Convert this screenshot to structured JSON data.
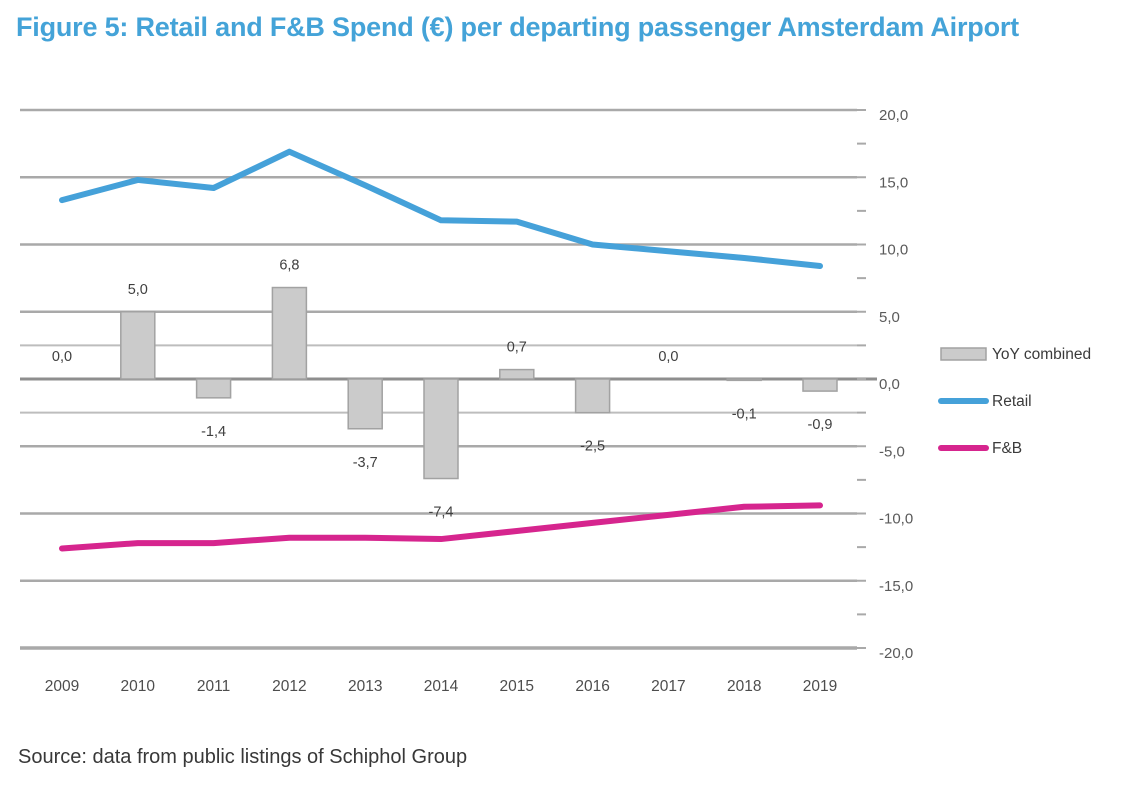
{
  "title": "Figure 5: Retail and F&B Spend (€) per departing passenger Amsterdam Airport",
  "source": "Source: data from public listings of Schiphol Group",
  "colors": {
    "title_text": "#44a3d8",
    "retail_line": "#45a1d9",
    "fnb_line": "#d6258e",
    "bar_fill": "#cbcbcb",
    "bar_border": "#a2a2a2",
    "gridline": "#a9a9a9",
    "minor_gridline": "#bdbdbd",
    "zero_line": "#8e8e8e",
    "axis_text": "#5a5a5a",
    "year_text": "#4d4d4d",
    "bar_label_text": "#3f3f3f",
    "legend_text": "#3b3b3b",
    "source_text": "#383838"
  },
  "chart_data": {
    "type": "bar",
    "subtype": "combo-bar-and-lines",
    "categories": [
      "2009",
      "2010",
      "2011",
      "2012",
      "2013",
      "2014",
      "2015",
      "2016",
      "2017",
      "2018",
      "2019"
    ],
    "series": [
      {
        "name": "YoY combined",
        "type": "bar",
        "values": [
          0.0,
          5.0,
          -1.4,
          6.8,
          -3.7,
          -7.4,
          0.7,
          -2.5,
          0.0,
          -0.1,
          -0.9
        ],
        "data_labels": [
          "0,0",
          "5,0",
          "-1,4",
          "6,8",
          "-3,7",
          "-7,4",
          "0,7",
          "-2,5",
          "0,0",
          "-0,1",
          "-0,9"
        ]
      },
      {
        "name": "Retail",
        "type": "line",
        "values": [
          13.3,
          14.8,
          14.2,
          16.9,
          14.4,
          11.8,
          11.7,
          10.0,
          9.5,
          9.0,
          8.4
        ]
      },
      {
        "name": "F&B",
        "type": "line",
        "values": [
          -12.6,
          -12.2,
          -12.2,
          -11.8,
          -11.8,
          -11.9,
          -11.3,
          -10.7,
          -10.1,
          -9.5,
          -9.4
        ],
        "note": "values read as plotted against the single visible right-hand axis; series likely sits on a hidden secondary axis"
      }
    ],
    "title": "Figure 5: Retail and F&B Spend (€) per departing passenger Amsterdam Airport",
    "xlabel": "",
    "ylabel": "",
    "ylim": [
      -20,
      20
    ],
    "y_axis": {
      "side": "right",
      "min": -20,
      "max": 20,
      "step": 5,
      "labels": [
        "20,0",
        "15,0",
        "10,0",
        "5,0",
        "0,0",
        "-5,0",
        "-10,0",
        "-15,0",
        "-20,0"
      ]
    },
    "gridlines": {
      "major_step": 5,
      "minor_lines": [
        2.5,
        -2.5
      ],
      "grid_on": true
    },
    "legend": {
      "position": "right",
      "entries": [
        "YoY combined",
        "Retail",
        "F&B"
      ]
    }
  }
}
